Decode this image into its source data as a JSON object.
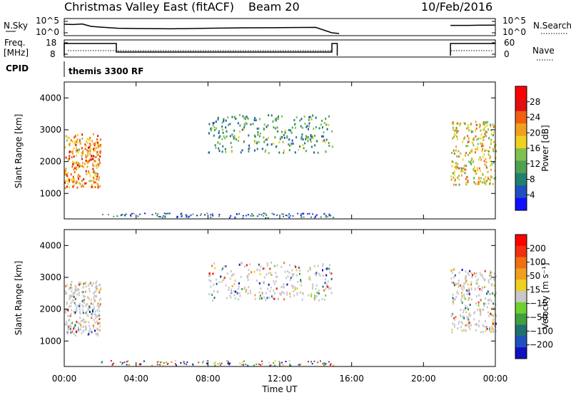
{
  "header": {
    "station": "Christmas Valley East (fitACF)",
    "beam": "Beam 20",
    "date": "10/Feb/2016"
  },
  "left_labels": {
    "nsky": "N.Sky",
    "freq": "Freq.",
    "freq_unit": "[MHz]",
    "cpid": "CPID"
  },
  "right_labels": {
    "nsearch": "N.Search",
    "nave": "Nave"
  },
  "cpid_text": "themis 3300 RF",
  "noise_ticks_left": [
    "10^5",
    "10^0"
  ],
  "noise_ticks_right": [
    "10^5",
    "10^0"
  ],
  "freq_ticks_left": [
    "18",
    "8"
  ],
  "freq_ticks_right": [
    "60",
    "0"
  ],
  "colors": {
    "power": [
      "#1010ff",
      "#2050c0",
      "#208070",
      "#50a050",
      "#80c050",
      "#f0d020",
      "#f0a020",
      "#f06010",
      "#e01010",
      "#ff0000"
    ],
    "velocity": [
      "#1010c0",
      "#2050c0",
      "#207070",
      "#40a040",
      "#70d030",
      "#c8c8c8",
      "#f0d020",
      "#f0a020",
      "#f07010",
      "#f03010",
      "#ff0000"
    ]
  },
  "chart_data": [
    {
      "type": "line",
      "series": [
        {
          "name": "N.Sky",
          "x": [
            0.0,
            0.5,
            1.0,
            1.5,
            2.0,
            3.0,
            4.0,
            6.0,
            8.0,
            10.0,
            12.0,
            14.0,
            14.9,
            15.3,
            21.5,
            22.5,
            23.0,
            24.0
          ],
          "values": [
            0.7,
            0.68,
            0.72,
            0.55,
            0.5,
            0.42,
            0.4,
            0.38,
            0.42,
            0.45,
            0.46,
            0.48,
            0.1,
            0.05,
            0.62,
            0.62,
            0.63,
            0.64
          ]
        }
      ],
      "xlim": [
        0,
        24
      ]
    },
    {
      "type": "line",
      "series": [
        {
          "name": "Freq.",
          "x": [
            0.0,
            2.9,
            2.9,
            14.9,
            14.9,
            15.2,
            21.5,
            24.0
          ],
          "values": [
            16.5,
            16.5,
            10.5,
            10.5,
            16.5,
            16.5,
            16.5,
            16.5
          ]
        }
      ],
      "ylim": [
        8,
        18
      ]
    },
    {
      "type": "heatmap",
      "title": "",
      "xlabel": "",
      "ylabel": "Slant Range [km]",
      "xlim": [
        0,
        24
      ],
      "ylim": [
        200,
        4500
      ],
      "y_ticks": [
        "1000",
        "2000",
        "3000",
        "4000"
      ],
      "colorbar_label": "Power [dB]",
      "colorbar_ticks": [
        "28",
        "24",
        "20",
        "16",
        "12",
        "8",
        "4"
      ],
      "regions": [
        {
          "t0": 0.0,
          "t1": 2.0,
          "r0": 1200,
          "r1": 2900,
          "v": 22
        },
        {
          "t0": 8.0,
          "t1": 14.9,
          "r0": 2300,
          "r1": 3500,
          "v": 10
        },
        {
          "t0": 21.5,
          "t1": 24.0,
          "r0": 1300,
          "r1": 3300,
          "v": 18
        }
      ]
    },
    {
      "type": "heatmap",
      "title": "",
      "xlabel": "Time UT",
      "ylabel": "Slant Range [km]",
      "xlim": [
        0,
        24
      ],
      "ylim": [
        200,
        4500
      ],
      "x_ticks": [
        "00:00",
        "04:00",
        "08:00",
        "12:00",
        "16:00",
        "20:00",
        "00:00"
      ],
      "y_ticks": [
        "1000",
        "2000",
        "3000",
        "4000"
      ],
      "colorbar_label": "Velocity [m s⁻¹]",
      "colorbar_ticks": [
        "200",
        "100",
        "50",
        "15",
        "−15",
        "−50",
        "−100",
        "−200"
      ],
      "regions": [
        {
          "t0": 0.0,
          "t1": 2.0,
          "r0": 1200,
          "r1": 2900,
          "v": 0
        },
        {
          "t0": 8.0,
          "t1": 14.9,
          "r0": 2300,
          "r1": 3500,
          "v": 0
        },
        {
          "t0": 21.5,
          "t1": 24.0,
          "r0": 1300,
          "r1": 3300,
          "v": 0
        }
      ]
    }
  ]
}
